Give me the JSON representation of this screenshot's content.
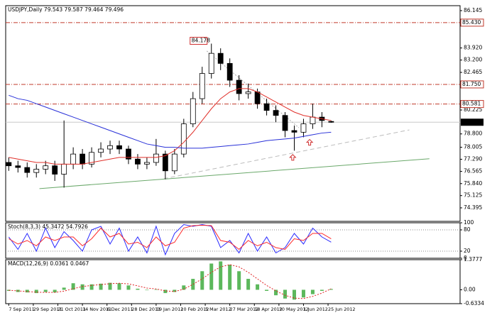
{
  "chart_data": [
    {
      "type": "candlestick",
      "title": "USDJPY,Daily 79.543 79.587 79.464 79.496",
      "xlim": [
        -2,
        294
      ],
      "ylim": [
        73.59,
        86.44
      ],
      "yticks": [
        86.145,
        {
          "value": 83.92,
          "label": "83.920"
        },
        {
          "value": 83.2,
          "label": "83.200"
        },
        82.465,
        80.225,
        {
          "value": 78.8,
          "label": "78.800"
        },
        78.005,
        {
          "value": 77.29,
          "label": "77.290"
        },
        76.565,
        {
          "value": 75.84,
          "label": "75.840"
        },
        75.125,
        74.395
      ],
      "x": [
        0,
        6,
        12,
        18,
        24,
        30,
        36,
        42,
        48,
        54,
        60,
        66,
        72,
        78,
        84,
        90,
        96,
        102,
        108,
        114,
        120,
        126,
        132,
        138,
        144,
        150,
        156,
        162,
        168,
        174,
        180,
        186,
        192,
        198,
        204,
        210
      ],
      "open": [
        77.1,
        76.9,
        76.8,
        76.5,
        76.7,
        76.9,
        76.4,
        77.0,
        77.6,
        77.0,
        77.7,
        77.9,
        78.1,
        77.9,
        77.3,
        77.0,
        77.1,
        77.6,
        76.6,
        77.6,
        79.4,
        80.9,
        82.4,
        83.6,
        83.0,
        82.0,
        81.2,
        81.3,
        80.6,
        80.2,
        79.9,
        79.0,
        78.9,
        79.4,
        79.8,
        79.543
      ],
      "high": [
        77.4,
        77.2,
        77.1,
        77.0,
        77.2,
        77.2,
        79.6,
        78.0,
        77.9,
        78.0,
        78.3,
        78.4,
        78.4,
        78.1,
        77.6,
        77.4,
        78.5,
        77.8,
        77.9,
        79.7,
        81.3,
        82.8,
        84.178,
        83.9,
        83.3,
        82.3,
        81.8,
        81.5,
        80.9,
        80.5,
        80.1,
        79.3,
        79.7,
        80.6,
        80.1,
        79.587
      ],
      "low": [
        76.6,
        76.5,
        76.2,
        76.2,
        76.4,
        76.0,
        75.6,
        76.7,
        76.7,
        76.8,
        77.4,
        77.6,
        77.6,
        77.0,
        76.7,
        76.7,
        76.9,
        76.1,
        76.4,
        77.4,
        79.2,
        80.6,
        82.1,
        82.6,
        81.6,
        80.8,
        80.9,
        80.3,
        79.9,
        79.5,
        78.6,
        77.8,
        78.6,
        79.1,
        79.2,
        79.464
      ],
      "close": [
        76.9,
        76.8,
        76.5,
        76.7,
        76.9,
        76.4,
        77.0,
        77.6,
        77.0,
        77.7,
        77.9,
        78.1,
        77.9,
        77.3,
        77.0,
        77.1,
        77.6,
        76.6,
        77.6,
        79.4,
        80.9,
        82.4,
        83.6,
        83.0,
        82.0,
        81.2,
        81.3,
        80.6,
        80.2,
        79.9,
        79.0,
        78.9,
        79.4,
        79.8,
        79.6,
        79.496
      ],
      "series": [
        {
          "color": "#e0302a",
          "values": [
            77.4,
            77.3,
            77.2,
            77.1,
            77.1,
            77.0,
            77.0,
            77.0,
            77.0,
            77.1,
            77.2,
            77.3,
            77.4,
            77.4,
            77.4,
            77.4,
            77.4,
            77.5,
            77.8,
            78.3,
            78.9,
            79.6,
            80.3,
            80.9,
            81.3,
            81.5,
            81.5,
            81.3,
            81.0,
            80.7,
            80.4,
            80.1,
            79.9,
            79.8,
            79.7,
            79.6
          ]
        },
        {
          "color": "#2830d8",
          "values": [
            81.1,
            80.9,
            80.8,
            80.6,
            80.4,
            80.2,
            80.0,
            79.8,
            79.6,
            79.4,
            79.2,
            79.0,
            78.8,
            78.6,
            78.4,
            78.2,
            78.1,
            78.0,
            78.0,
            77.95,
            77.95,
            77.95,
            78.0,
            78.05,
            78.1,
            78.15,
            78.2,
            78.3,
            78.4,
            78.45,
            78.5,
            78.55,
            78.65,
            78.75,
            78.85,
            78.9
          ]
        }
      ],
      "levels": [
        {
          "value": 85.43,
          "label": "85.430"
        },
        {
          "value": 81.75,
          "label": "81.750"
        },
        80.581
      ],
      "level_color": "#c0392b",
      "last_price": 79.496,
      "annotation": 84.178,
      "trendlines": [
        {
          "color": "#6aa86a",
          "style": "solid",
          "x": [
            20,
            274
          ],
          "y": [
            75.54,
            77.32
          ]
        },
        {
          "color": "#bbbbbb",
          "style": "dashed",
          "x": [
            101,
            261
          ],
          "y": [
            76.13,
            79.04
          ]
        },
        {
          "color": "#aaaaaa",
          "style": "dotted",
          "x": [
            129,
            189
          ],
          "y": [
            83.74,
            79.17
          ]
        }
      ],
      "arrows": [
        {
          "x": 185,
          "y": 77.4
        },
        {
          "x": 196,
          "y": 78.3
        }
      ],
      "arrow_color": "#d03030"
    },
    {
      "type": "line",
      "title": "Stoch(8,3,3) 45.3472 54.7926",
      "xlim": [
        -2,
        294
      ],
      "ylim": [
        0,
        100
      ],
      "yticks": [
        100,
        80,
        20,
        0
      ],
      "grid": true,
      "x": [
        0,
        6,
        12,
        18,
        24,
        30,
        36,
        42,
        48,
        54,
        60,
        66,
        72,
        78,
        84,
        90,
        96,
        102,
        108,
        114,
        120,
        126,
        132,
        138,
        144,
        150,
        156,
        162,
        168,
        174,
        180,
        186,
        192,
        198,
        204,
        210
      ],
      "series": [
        {
          "color": "#2a2aff",
          "values": [
            60,
            25,
            70,
            20,
            85,
            30,
            75,
            50,
            20,
            80,
            90,
            40,
            85,
            20,
            60,
            15,
            90,
            10,
            70,
            95,
            90,
            95,
            90,
            30,
            50,
            15,
            70,
            20,
            60,
            15,
            30,
            70,
            40,
            85,
            60,
            45.3472
          ]
        },
        {
          "color": "#ff2a2a",
          "values": [
            55,
            40,
            50,
            35,
            60,
            50,
            60,
            60,
            35,
            55,
            85,
            60,
            70,
            40,
            45,
            30,
            60,
            35,
            45,
            85,
            92,
            93,
            92,
            50,
            45,
            25,
            50,
            35,
            45,
            30,
            25,
            55,
            50,
            70,
            70,
            54.7926
          ]
        }
      ]
    },
    {
      "type": "bar",
      "title": "MACD(12,26,9) 0.0361 0.0467",
      "xlim": [
        -2,
        294
      ],
      "ylim": [
        -0.6334,
        1.3777
      ],
      "yticks": [
        1.3777,
        {
          "value": 0,
          "label": "0.00"
        },
        -0.6334
      ],
      "xticks": [
        {
          "value": 0,
          "label": "7 Sep 2011"
        },
        {
          "value": 16,
          "label": "29 Sep 2011"
        },
        {
          "value": 32,
          "label": "21 Oct 2011"
        },
        {
          "value": 48,
          "label": "14 Nov 2011"
        },
        {
          "value": 64,
          "label": "6 Dec 2011"
        },
        {
          "value": 80,
          "label": "28 Dec 2011"
        },
        {
          "value": 96,
          "label": "19 Jan 2012"
        },
        {
          "value": 112,
          "label": "10 Feb 2012"
        },
        {
          "value": 128,
          "label": "5 Mar 2012"
        },
        {
          "value": 144,
          "label": "27 Mar 2012"
        },
        {
          "value": 160,
          "label": "18 Apr 2012"
        },
        {
          "value": 176,
          "label": "10 May 2012"
        },
        {
          "value": 192,
          "label": "1 Jun 2012"
        },
        {
          "value": 208,
          "label": "25 Jun 2012"
        }
      ],
      "x": [
        0,
        6,
        12,
        18,
        24,
        30,
        36,
        42,
        48,
        54,
        60,
        66,
        72,
        78,
        84,
        90,
        96,
        102,
        108,
        114,
        120,
        126,
        132,
        138,
        144,
        150,
        156,
        162,
        168,
        174,
        180,
        186,
        192,
        198,
        204,
        210
      ],
      "values": [
        -0.05,
        -0.1,
        -0.12,
        -0.15,
        -0.1,
        -0.12,
        0.1,
        0.3,
        0.25,
        0.25,
        0.28,
        0.32,
        0.3,
        0.2,
        0.05,
        -0.02,
        0.02,
        -0.15,
        -0.1,
        0.2,
        0.5,
        0.85,
        1.2,
        1.3,
        1.15,
        0.85,
        0.5,
        0.25,
        -0.05,
        -0.25,
        -0.4,
        -0.45,
        -0.35,
        -0.2,
        -0.05,
        0.0361
      ],
      "color": "#5cb85c",
      "signal": [
        -0.02,
        -0.05,
        -0.08,
        -0.11,
        -0.12,
        -0.12,
        -0.06,
        0.05,
        0.15,
        0.2,
        0.24,
        0.28,
        0.3,
        0.27,
        0.18,
        0.08,
        0.04,
        -0.05,
        -0.08,
        0.03,
        0.25,
        0.5,
        0.8,
        1.05,
        1.15,
        1.05,
        0.8,
        0.5,
        0.2,
        -0.05,
        -0.25,
        -0.38,
        -0.4,
        -0.3,
        -0.15,
        0.0467
      ],
      "signal_color": "#e02020"
    }
  ]
}
